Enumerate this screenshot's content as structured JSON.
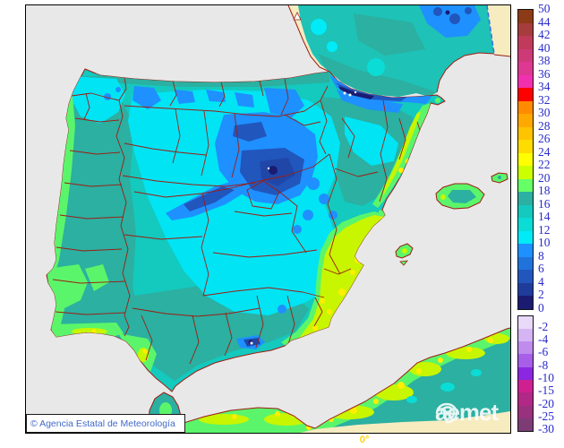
{
  "map": {
    "copyright": "© Agencia Estatal de Meteorología",
    "watermark": "aemet",
    "meridian_label": "0°"
  },
  "legend": {
    "text_color": "#2a2acc",
    "positive": {
      "labels": [
        "50",
        "44",
        "42",
        "40",
        "38",
        "36",
        "34",
        "32",
        "30",
        "28",
        "26",
        "24",
        "22",
        "20",
        "18",
        "16",
        "14",
        "12",
        "10",
        "8",
        "6",
        "4",
        "2",
        "0"
      ],
      "colors": [
        "#8d3a16",
        "#a63c3c",
        "#c03a5c",
        "#ce3a78",
        "#dd3892",
        "#f130b0",
        "#ff0000",
        "#ff8c00",
        "#ffa800",
        "#ffc400",
        "#ffdc00",
        "#ffff00",
        "#ccff00",
        "#66ff66",
        "#2bb0a1",
        "#14c9be",
        "#0bdcd6",
        "#00eaf8",
        "#1e90ff",
        "#2173dc",
        "#2156bc",
        "#203c9b",
        "#1b1b71"
      ]
    },
    "negative": {
      "labels": [
        "-2",
        "-4",
        "-6",
        "-8",
        "-10",
        "-15",
        "-20",
        "-25",
        "-30"
      ],
      "colors": [
        "#e8d9f8",
        "#d4b4f3",
        "#bf8cee",
        "#a75ee9",
        "#8b27e0",
        "#ce2090",
        "#b22887",
        "#99317e",
        "#7e3c77"
      ]
    }
  },
  "colors": {
    "sea": "#e8e8e8",
    "no_data_land": "#f7ecc0",
    "coast_border": "#9e1c12",
    "domain_edge": "#3b6fe0",
    "frame": "#000000"
  }
}
